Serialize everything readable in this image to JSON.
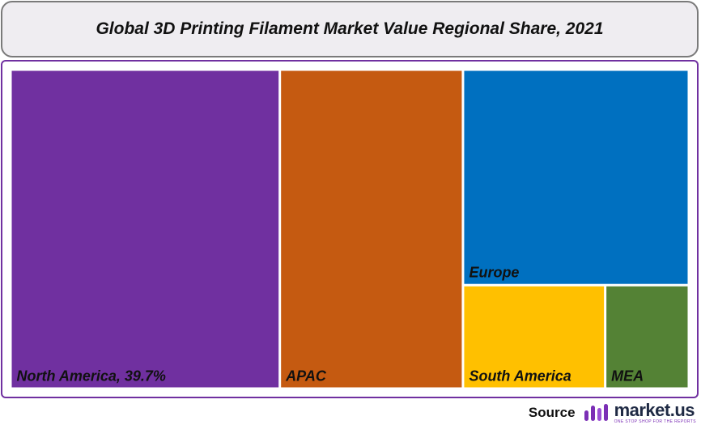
{
  "header": {
    "title": "Global 3D Printing Filament Market Value Regional Share, 2021"
  },
  "chart_data": {
    "type": "treemap",
    "title": "Global 3D Printing Filament Market Value Regional Share, 2021",
    "unit": "%",
    "items": [
      {
        "label": "North America, 39.7%",
        "name": "North America",
        "value": 39.7,
        "color": "#7030a0"
      },
      {
        "label": "APAC",
        "name": "APAC",
        "value": 27.0,
        "color": "#c55a11"
      },
      {
        "label": "Europe",
        "name": "Europe",
        "value": 22.5,
        "color": "#0070c0"
      },
      {
        "label": "South America",
        "name": "South America",
        "value": 6.8,
        "color": "#ffc000"
      },
      {
        "label": "MEA",
        "name": "MEA",
        "value": 4.0,
        "color": "#548235"
      }
    ]
  },
  "footer": {
    "source_label": "Source",
    "brand_name": "market.us",
    "brand_tagline": "ONE STOP SHOP FOR THE REPORTS",
    "brand_color": "#7b2fb5"
  }
}
